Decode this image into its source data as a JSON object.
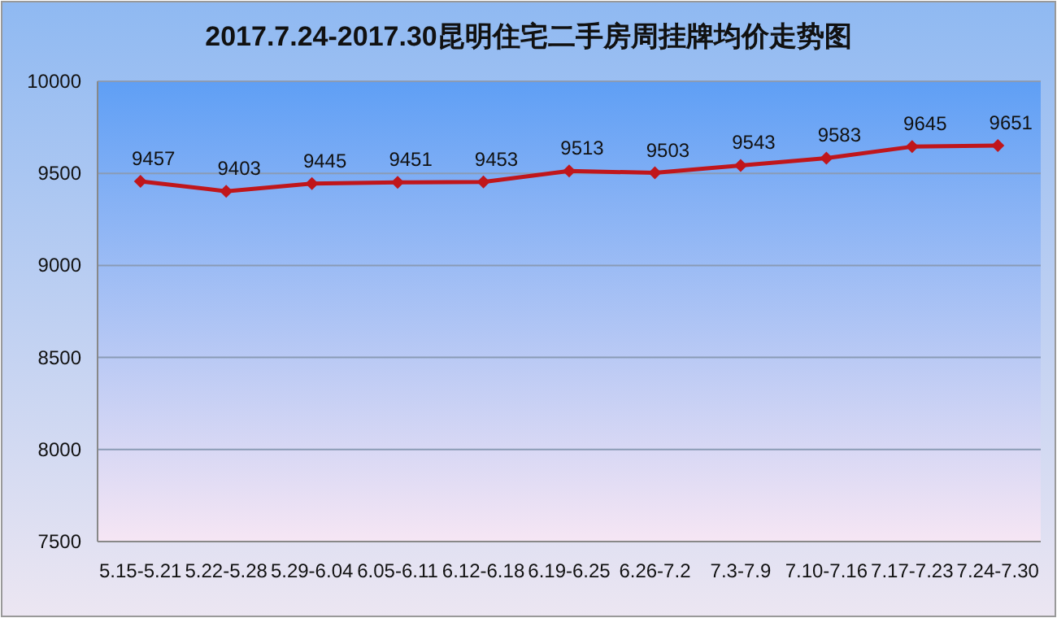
{
  "chart_data": {
    "type": "line",
    "title": "2017.7.24-2017.30昆明住宅二手房周挂牌均价走势图",
    "categories": [
      "5.15-5.21",
      "5.22-5.28",
      "5.29-6.04",
      "6.05-6.11",
      "6.12-6.18",
      "6.19-6.25",
      "6.26-7.2",
      "7.3-7.9",
      "7.10-7.16",
      "7.17-7.23",
      "7.24-7.30"
    ],
    "series": [
      {
        "color": "#c0161b",
        "values": [
          9457,
          9403,
          9445,
          9451,
          9453,
          9513,
          9503,
          9543,
          9583,
          9645,
          9651
        ]
      }
    ],
    "ylim": [
      7500,
      10000
    ],
    "yticks": [
      7500,
      8000,
      8500,
      9000,
      9500,
      10000
    ],
    "grid": "y",
    "marker": "diamond",
    "line_style": "solid",
    "data_labels": true
  }
}
